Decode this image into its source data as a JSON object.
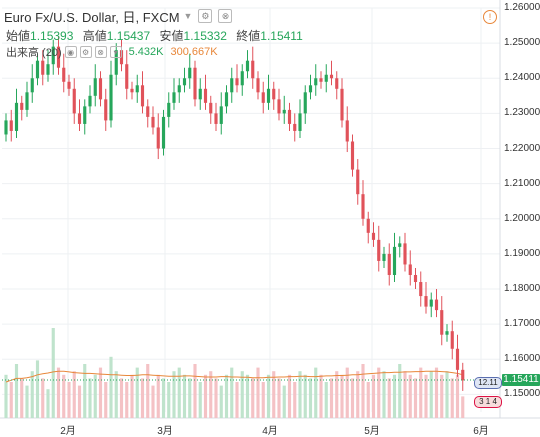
{
  "header": {
    "symbol": "Euro Fx/U.S. Dollar, 日, FXCM",
    "dropdown_icon": "chevron-down-icon",
    "buttons": [
      "settings-icon",
      "close-icon"
    ]
  },
  "ohlc": {
    "open_label": "始値",
    "open": "1.15393",
    "high_label": "高値",
    "high": "1.15437",
    "low_label": "安値",
    "low": "1.15332",
    "close_label": "終値",
    "close": "1.15411"
  },
  "volume": {
    "label": "出来高 (20)",
    "value": "5.432K",
    "ma_value": "300.667K"
  },
  "alert_icon": "!",
  "last_price_label": "1.15411",
  "markers": [
    "12.11",
    "3 1 4"
  ],
  "colors": {
    "up": "#26a65b",
    "down": "#e0525a",
    "ma": "#e8873a",
    "vol_up": "#bfe3cc",
    "vol_down": "#f4c2c5"
  },
  "chart_data": {
    "type": "candlestick",
    "y_ticks": [
      "1.26000",
      "1.25000",
      "1.24000",
      "1.23000",
      "1.22000",
      "1.21000",
      "1.20000",
      "1.19000",
      "1.18000",
      "1.17000",
      "1.16000",
      "1.15000"
    ],
    "ylim": [
      1.145,
      1.26
    ],
    "x_ticks": [
      "2月",
      "3月",
      "4月",
      "5月",
      "6月"
    ],
    "close_series": [
      1.228,
      1.225,
      1.233,
      1.231,
      1.236,
      1.24,
      1.245,
      1.241,
      1.244,
      1.249,
      1.243,
      1.239,
      1.237,
      1.23,
      1.227,
      1.232,
      1.235,
      1.24,
      1.234,
      1.228,
      1.241,
      1.248,
      1.244,
      1.237,
      1.236,
      1.238,
      1.232,
      1.229,
      1.226,
      1.22,
      1.229,
      1.233,
      1.236,
      1.238,
      1.24,
      1.243,
      1.234,
      1.237,
      1.233,
      1.23,
      1.227,
      1.232,
      1.236,
      1.24,
      1.238,
      1.242,
      1.245,
      1.24,
      1.236,
      1.233,
      1.237,
      1.234,
      1.23,
      1.231,
      1.227,
      1.225,
      1.23,
      1.236,
      1.238,
      1.24,
      1.239,
      1.241,
      1.24,
      1.237,
      1.228,
      1.222,
      1.214,
      1.207,
      1.2,
      1.196,
      1.194,
      1.188,
      1.19,
      1.184,
      1.192,
      1.193,
      1.187,
      1.184,
      1.182,
      1.178,
      1.175,
      1.177,
      1.174,
      1.167,
      1.168,
      1.163,
      1.157,
      1.154
    ],
    "volume_series": [
      12,
      10,
      15,
      11,
      9,
      13,
      16,
      11,
      8,
      25,
      14,
      12,
      10,
      13,
      9,
      15,
      11,
      12,
      14,
      10,
      17,
      13,
      11,
      10,
      12,
      14,
      11,
      15,
      9,
      12,
      11,
      10,
      13,
      14,
      12,
      11,
      15,
      10,
      12,
      13,
      11,
      9,
      12,
      14,
      10,
      13,
      12,
      11,
      14,
      10,
      12,
      13,
      11,
      9,
      12,
      10,
      13,
      12,
      11,
      14,
      12,
      10,
      11,
      13,
      12,
      14,
      11,
      13,
      15,
      10,
      12,
      14,
      13,
      11,
      12,
      15,
      13,
      12,
      11,
      14,
      12,
      13,
      14,
      12,
      13,
      11,
      12,
      6
    ],
    "volume_ma_series": [
      10,
      10.5,
      11,
      11,
      11.2,
      11.5,
      12,
      12.3,
      12.5,
      12.8,
      13,
      13,
      12.8,
      12.6,
      12.5,
      12.4,
      12.4,
      12.3,
      12.2,
      12.1,
      12,
      12,
      11.9,
      11.8,
      11.8,
      11.9,
      12,
      12,
      11.9,
      11.8,
      11.7,
      11.6,
      11.6,
      11.6,
      11.7,
      11.7,
      11.6,
      11.5,
      11.4,
      11.4,
      11.4,
      11.5,
      11.5,
      11.4,
      11.4,
      11.3,
      11.3,
      11.2,
      11.2,
      11.2,
      11.3,
      11.3,
      11.4,
      11.4,
      11.5,
      11.5,
      11.6,
      11.6,
      11.5,
      11.5,
      11.6,
      11.7,
      11.7,
      11.8,
      11.8,
      11.9,
      12,
      12,
      12.2,
      12.3,
      12.4,
      12.5,
      12.6,
      12.6,
      12.7,
      12.7,
      12.8,
      12.8,
      12.9,
      12.9,
      13,
      13,
      13,
      12.9,
      12.8,
      12.6,
      12.4,
      12.0
    ]
  }
}
